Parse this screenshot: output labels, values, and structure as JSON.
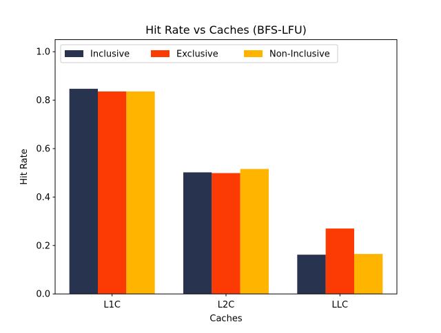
{
  "chart_data": {
    "type": "bar",
    "title": "Hit Rate vs Caches (BFS-LFU)",
    "xlabel": "Caches",
    "ylabel": "Hit Rate",
    "categories": [
      "L1C",
      "L2C",
      "LLC"
    ],
    "series": [
      {
        "name": "Inclusive",
        "color": "#283350",
        "values": [
          0.847,
          0.502,
          0.162
        ]
      },
      {
        "name": "Exclusive",
        "color": "#fc3a03",
        "values": [
          0.836,
          0.499,
          0.27
        ]
      },
      {
        "name": "Non-Inclusive",
        "color": "#ffb400",
        "values": [
          0.836,
          0.516,
          0.165
        ]
      }
    ],
    "ylim": [
      0,
      1.05
    ],
    "yticks": [
      "0.0",
      "0.2",
      "0.4",
      "0.6",
      "0.8",
      "1.0"
    ],
    "ytick_values": [
      0,
      0.2,
      0.4,
      0.6,
      0.8,
      1.0
    ],
    "grid": false,
    "legend": {
      "placement": "top-left",
      "columns": 3
    }
  }
}
